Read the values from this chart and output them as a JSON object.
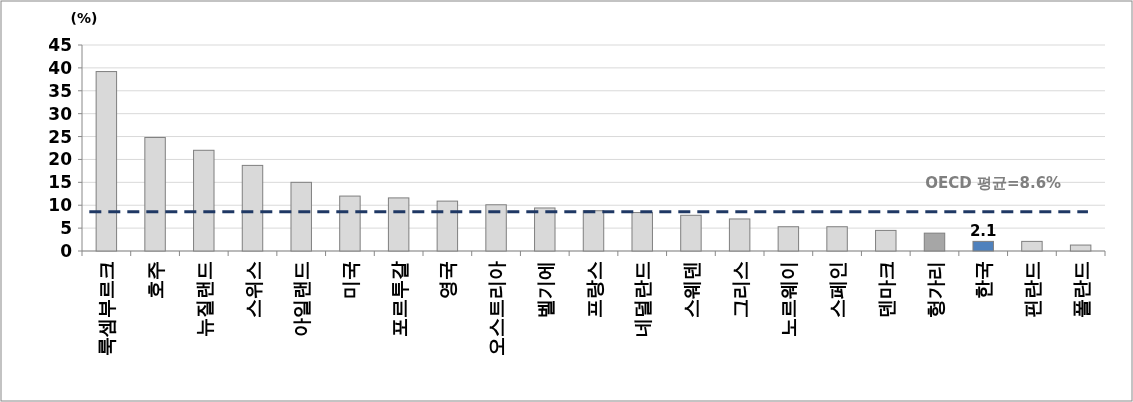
{
  "chart_data": {
    "type": "bar",
    "ylabel": "(%)",
    "categories": [
      "룩셈부르크",
      "호주",
      "뉴질랜드",
      "스위스",
      "아일랜드",
      "미국",
      "포르투갈",
      "영국",
      "오스트리아",
      "벨기에",
      "프랑스",
      "네덜란드",
      "스웨덴",
      "그리스",
      "노르웨이",
      "스페인",
      "덴마크",
      "헝가리",
      "한국",
      "핀란드",
      "폴란드"
    ],
    "values": [
      39.2,
      24.8,
      22.0,
      18.7,
      15.0,
      12.0,
      11.6,
      10.9,
      10.1,
      9.4,
      8.8,
      8.4,
      7.8,
      7.0,
      5.3,
      5.3,
      4.5,
      3.9,
      2.1,
      2.1,
      1.3
    ],
    "colors": [
      "#d9d9d9",
      "#d9d9d9",
      "#d9d9d9",
      "#d9d9d9",
      "#d9d9d9",
      "#d9d9d9",
      "#d9d9d9",
      "#d9d9d9",
      "#d9d9d9",
      "#d9d9d9",
      "#d9d9d9",
      "#d9d9d9",
      "#d9d9d9",
      "#d9d9d9",
      "#d9d9d9",
      "#d9d9d9",
      "#d9d9d9",
      "#a6a6a6",
      "#4f81bd",
      "#d9d9d9",
      "#d9d9d9"
    ],
    "value_labels": [
      null,
      null,
      null,
      null,
      null,
      null,
      null,
      null,
      null,
      null,
      null,
      null,
      null,
      null,
      null,
      null,
      null,
      null,
      "2.1",
      null,
      null
    ],
    "ylim": [
      0,
      45
    ],
    "yticks": [
      0,
      5,
      10,
      15,
      20,
      25,
      30,
      35,
      40,
      45
    ],
    "grid": "y",
    "ref_lines": [
      {
        "axis": "y",
        "value": 8.6,
        "label": "OECD 평균=8.6%",
        "color": "#1f3864",
        "line_style": "dashed"
      }
    ]
  }
}
